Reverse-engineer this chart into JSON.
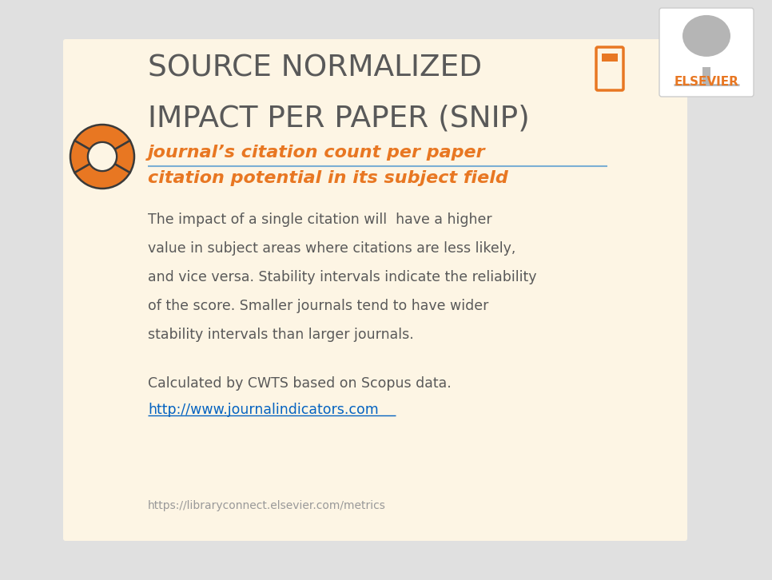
{
  "bg_outer": "#e0e0e0",
  "bg_panel": "#fdf5e4",
  "bg_white": "#ffffff",
  "orange": "#e87722",
  "dark_gray": "#595959",
  "blue_link": "#0563c1",
  "divider_color": "#7bafd4",
  "elsevier_orange": "#e87722",
  "title_line1": "SOURCE NORMALIZED",
  "title_line2": "IMPACT PER PAPER (SNIP)",
  "fraction_numerator": "journal’s citation count per paper",
  "fraction_denominator": "citation potential in its subject field",
  "body_text_lines": [
    "The impact of a single citation will  have a higher",
    "value in subject areas where citations are less likely,",
    "and vice versa. Stability intervals indicate the reliability",
    "of the score. Smaller journals tend to have wider",
    "stability intervals than larger journals."
  ],
  "calc_line": "Calculated by CWTS based on Scopus data.",
  "link_url": "http://www.journalindicators.com",
  "footer_url": "https://libraryconnect.elsevier.com/metrics",
  "elsevier_label": "ELSEVIER"
}
